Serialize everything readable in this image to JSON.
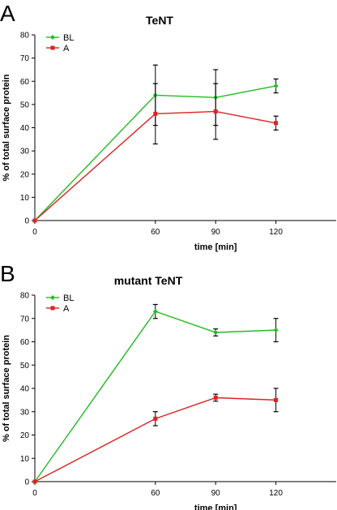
{
  "chart_data": [
    {
      "type": "line",
      "panel_label": "A",
      "title": "TeNT",
      "xlabel": "time [min]",
      "ylabel": "% of total surface protein",
      "xlim": [
        0,
        150
      ],
      "ylim": [
        0,
        80
      ],
      "xticks": [
        0,
        60,
        90,
        120
      ],
      "yticks": [
        0,
        10,
        20,
        30,
        40,
        50,
        60,
        70,
        80
      ],
      "x": [
        0,
        60,
        90,
        120
      ],
      "grid": false,
      "legend_position": "top-left",
      "series": [
        {
          "name": "BL",
          "color": "#22bb22",
          "marker": "diamond",
          "values": [
            0,
            54,
            53,
            58
          ],
          "errors": [
            0,
            13,
            12,
            3
          ]
        },
        {
          "name": "A",
          "color": "#dd2222",
          "marker": "square",
          "values": [
            0,
            46,
            47,
            42
          ],
          "errors": [
            0,
            13,
            12,
            3
          ]
        }
      ]
    },
    {
      "type": "line",
      "panel_label": "B",
      "title": "mutant TeNT",
      "xlabel": "time [min]",
      "ylabel": "% of total surface protein",
      "xlim": [
        0,
        150
      ],
      "ylim": [
        0,
        80
      ],
      "xticks": [
        0,
        60,
        90,
        120
      ],
      "yticks": [
        0,
        10,
        20,
        30,
        40,
        50,
        60,
        70,
        80
      ],
      "x": [
        0,
        60,
        90,
        120
      ],
      "grid": false,
      "legend_position": "top-left",
      "series": [
        {
          "name": "BL",
          "color": "#22bb22",
          "marker": "diamond",
          "values": [
            0,
            73,
            64,
            65
          ],
          "errors": [
            0,
            3,
            1.5,
            5
          ]
        },
        {
          "name": "A",
          "color": "#dd2222",
          "marker": "square",
          "values": [
            0,
            27,
            36,
            35
          ],
          "errors": [
            0,
            3,
            1.5,
            5
          ]
        }
      ]
    }
  ]
}
